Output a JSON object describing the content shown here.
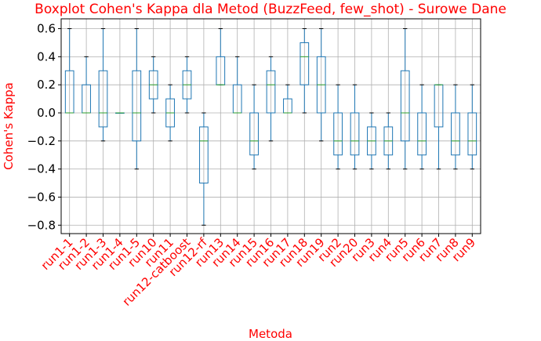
{
  "chart_data": {
    "type": "boxplot",
    "title": "Boxplot Cohen's Kappa dla Metod (BuzzFeed, few_shot) - Surowe Dane",
    "xlabel": "Metoda",
    "ylabel": "Cohen's Kappa",
    "ylim": [
      -0.86,
      0.67
    ],
    "yticks": [
      -0.8,
      -0.6,
      -0.4,
      -0.2,
      0.0,
      0.2,
      0.4,
      0.6
    ],
    "ytick_labels": [
      "−0.8",
      "−0.6",
      "−0.4",
      "−0.2",
      "0.0",
      "0.2",
      "0.4",
      "0.6"
    ],
    "grid": true,
    "colors": {
      "box": "#1f77b4",
      "median": "#2ca02c",
      "grid": "#b0b0b0",
      "label": "#ff0000"
    },
    "categories": [
      "run1-1",
      "run1-2",
      "run1-3",
      "run1-4",
      "run1-5",
      "run10",
      "run11",
      "run12-catboost",
      "run12-rf",
      "run13",
      "run14",
      "run15",
      "run16",
      "run17",
      "run18",
      "run19",
      "run2",
      "run20",
      "run3",
      "run4",
      "run5",
      "run6",
      "run7",
      "run8",
      "run9"
    ],
    "boxes": [
      {
        "min": 0.0,
        "q1": 0.0,
        "median": 0.0,
        "q3": 0.3,
        "max": 0.6
      },
      {
        "min": 0.0,
        "q1": 0.0,
        "median": 0.0,
        "q3": 0.2,
        "max": 0.4
      },
      {
        "min": -0.2,
        "q1": -0.1,
        "median": 0.0,
        "q3": 0.3,
        "max": 0.6
      },
      {
        "min": 0.0,
        "q1": 0.0,
        "median": 0.0,
        "q3": 0.0,
        "max": 0.0
      },
      {
        "min": -0.4,
        "q1": -0.2,
        "median": 0.0,
        "q3": 0.3,
        "max": 0.6
      },
      {
        "min": 0.0,
        "q1": 0.1,
        "median": 0.2,
        "q3": 0.3,
        "max": 0.4
      },
      {
        "min": -0.2,
        "q1": -0.1,
        "median": 0.0,
        "q3": 0.1,
        "max": 0.2
      },
      {
        "min": 0.0,
        "q1": 0.1,
        "median": 0.2,
        "q3": 0.3,
        "max": 0.4
      },
      {
        "min": -0.8,
        "q1": -0.5,
        "median": -0.2,
        "q3": -0.1,
        "max": 0.0
      },
      {
        "min": 0.2,
        "q1": 0.2,
        "median": 0.2,
        "q3": 0.4,
        "max": 0.6
      },
      {
        "min": 0.0,
        "q1": 0.0,
        "median": 0.0,
        "q3": 0.2,
        "max": 0.4
      },
      {
        "min": -0.4,
        "q1": -0.3,
        "median": -0.2,
        "q3": 0.0,
        "max": 0.2
      },
      {
        "min": -0.2,
        "q1": 0.0,
        "median": 0.2,
        "q3": 0.3,
        "max": 0.4
      },
      {
        "min": 0.0,
        "q1": 0.0,
        "median": 0.0,
        "q3": 0.1,
        "max": 0.2
      },
      {
        "min": 0.0,
        "q1": 0.2,
        "median": 0.4,
        "q3": 0.5,
        "max": 0.6
      },
      {
        "min": -0.2,
        "q1": 0.0,
        "median": 0.2,
        "q3": 0.4,
        "max": 0.6
      },
      {
        "min": -0.4,
        "q1": -0.3,
        "median": -0.2,
        "q3": 0.0,
        "max": 0.2
      },
      {
        "min": -0.4,
        "q1": -0.3,
        "median": -0.2,
        "q3": 0.0,
        "max": 0.2
      },
      {
        "min": -0.4,
        "q1": -0.3,
        "median": -0.2,
        "q3": -0.1,
        "max": 0.0
      },
      {
        "min": -0.4,
        "q1": -0.3,
        "median": -0.2,
        "q3": -0.1,
        "max": 0.0
      },
      {
        "min": -0.4,
        "q1": -0.2,
        "median": 0.0,
        "q3": 0.3,
        "max": 0.6
      },
      {
        "min": -0.4,
        "q1": -0.3,
        "median": -0.2,
        "q3": 0.0,
        "max": 0.2
      },
      {
        "min": -0.4,
        "q1": -0.1,
        "median": 0.2,
        "q3": 0.2,
        "max": 0.2
      },
      {
        "min": -0.4,
        "q1": -0.3,
        "median": -0.2,
        "q3": 0.0,
        "max": 0.2
      },
      {
        "min": -0.4,
        "q1": -0.3,
        "median": -0.2,
        "q3": 0.0,
        "max": 0.2
      }
    ]
  }
}
